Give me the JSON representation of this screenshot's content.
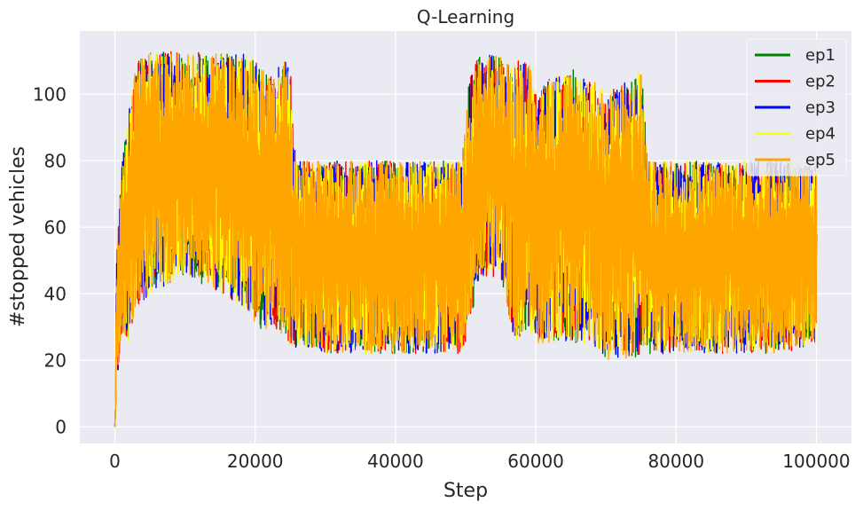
{
  "chart_data": {
    "type": "line",
    "title": "Q-Learning",
    "xlabel": "Step",
    "ylabel": "#stopped vehicles",
    "xlim": [
      -5000,
      105000
    ],
    "ylim": [
      -5,
      119
    ],
    "xticks": [
      0,
      20000,
      40000,
      60000,
      80000,
      100000
    ],
    "xtick_labels": [
      "0",
      "20000",
      "40000",
      "60000",
      "80000",
      "100000"
    ],
    "yticks": [
      0,
      20,
      40,
      60,
      80,
      100
    ],
    "ytick_labels": [
      "0",
      "20",
      "40",
      "60",
      "80",
      "100"
    ],
    "grid": true,
    "legend_position": "top-right",
    "series": [
      {
        "name": "ep1",
        "color": "#008000"
      },
      {
        "name": "ep2",
        "color": "#ff0000"
      },
      {
        "name": "ep3",
        "color": "#0000ff"
      },
      {
        "name": "ep4",
        "color": "#ffff00"
      },
      {
        "name": "ep5",
        "color": "#ffa500"
      }
    ],
    "envelope": {
      "x": [
        0,
        200,
        1000,
        2000,
        3000,
        5000,
        10000,
        15000,
        19000,
        20000,
        22000,
        24000,
        25000,
        25500,
        26000,
        30000,
        35000,
        40000,
        45000,
        49500,
        50500,
        52000,
        55000,
        57000,
        59000,
        60000,
        62000,
        65000,
        68000,
        70000,
        72000,
        74000,
        75000,
        76000,
        80000,
        85000,
        90000,
        95000,
        100000
      ],
      "low": [
        0,
        10,
        28,
        25,
        35,
        40,
        45,
        40,
        35,
        30,
        28,
        28,
        25,
        22,
        25,
        22,
        22,
        22,
        22,
        22,
        30,
        45,
        45,
        25,
        30,
        25,
        25,
        25,
        25,
        20,
        20,
        20,
        22,
        22,
        22,
        22,
        22,
        22,
        25
      ],
      "high": [
        0,
        50,
        80,
        95,
        110,
        113,
        113,
        112,
        112,
        110,
        105,
        110,
        110,
        85,
        80,
        80,
        80,
        80,
        80,
        80,
        105,
        112,
        112,
        110,
        110,
        100,
        105,
        108,
        105,
        100,
        103,
        105,
        110,
        80,
        80,
        80,
        80,
        80,
        78
      ]
    }
  }
}
